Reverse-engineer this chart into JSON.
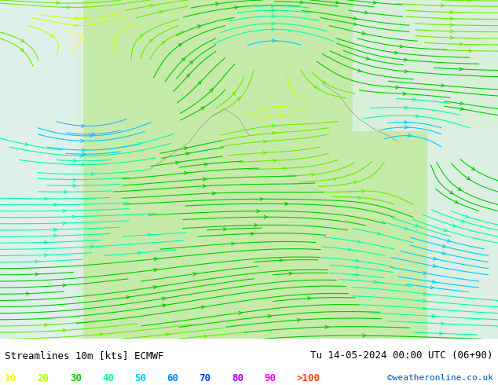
{
  "title_left": "Streamlines 10m [kts] ECMWF",
  "title_right": "Tu 14-05-2024 00:00 UTC (06+90)",
  "credit": "©weatheronline.co.uk",
  "legend_labels": [
    "10",
    "20",
    "30",
    "40",
    "50",
    "60",
    "70",
    "80",
    "90",
    ">100"
  ],
  "legend_colors": [
    "#ffff00",
    "#aaff00",
    "#00cc00",
    "#00ff88",
    "#00ccff",
    "#0088ff",
    "#0044ff",
    "#aa00ff",
    "#ff00ff",
    "#ff4400"
  ],
  "bg_color": "#ffffff",
  "bottom_bar_color": "#ffffff",
  "fig_width": 6.34,
  "fig_height": 4.9,
  "dpi": 100,
  "map_bg_colors": {
    "land_light": "#d8f0b8",
    "land_medium": "#b8e890",
    "sea_light": "#e8f4ff",
    "sea_lighter": "#f0f8ff"
  },
  "streamline_colors": {
    "slow": "#aaff00",
    "medium": "#ffff00",
    "fast": "#00cc00",
    "vfast": "#00aaff",
    "cyan": "#00ffff"
  },
  "seed_density": 3,
  "bottom_text_color": "#000000",
  "credit_color": "#0055aa"
}
